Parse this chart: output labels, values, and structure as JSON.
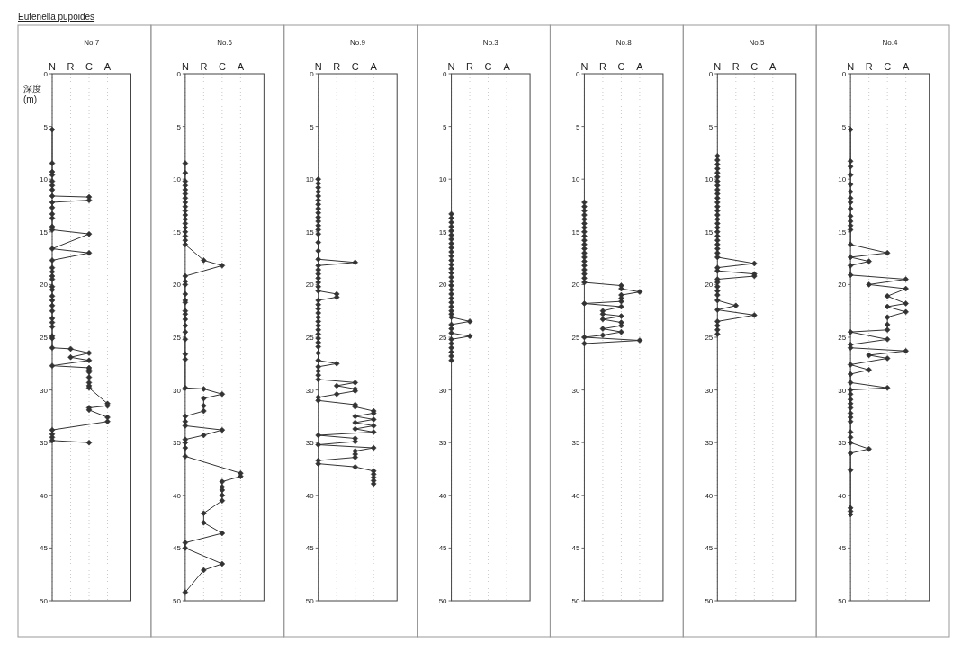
{
  "chart_data": [
    {
      "type": "line",
      "title": "No.7",
      "ylabel": "深度\n(m)",
      "annotations": [
        "Eufenella pupoides"
      ],
      "categories": [
        "N",
        "R",
        "C",
        "A"
      ],
      "ylim": [
        50,
        0
      ],
      "yticks": [
        0,
        5,
        10,
        15,
        20,
        25,
        30,
        35,
        40,
        45,
        50
      ],
      "grid": "x",
      "marker": "diamond",
      "line_style": "solid",
      "series": [
        {
          "color": "#333333",
          "x": [
            "N",
            "N",
            "N",
            "N",
            "N",
            "N",
            "N",
            "N",
            "C",
            "C",
            "N",
            "N",
            "N",
            "N",
            "N",
            "N",
            "C",
            "N",
            "C",
            "N",
            "N",
            "N",
            "N",
            "N",
            "N",
            "N",
            "N",
            "N",
            "N",
            "N",
            "N",
            "N",
            "N",
            "N",
            "N",
            "N",
            "R",
            "C",
            "R",
            "C",
            "N",
            "C",
            "C",
            "C",
            "C",
            "C",
            "C",
            "C",
            "A",
            "A",
            "C",
            "C",
            "A",
            "A",
            "N",
            "N",
            "N",
            "N",
            "C"
          ],
          "values": [
            5.3,
            8.5,
            9.3,
            9.6,
            10.2,
            10.6,
            11.0,
            11.6,
            11.7,
            12.0,
            12.2,
            12.7,
            13.3,
            13.7,
            14.5,
            14.8,
            15.2,
            16.6,
            17.0,
            17.7,
            18.4,
            18.8,
            19.2,
            19.5,
            20.2,
            20.5,
            21.1,
            21.5,
            22.0,
            22.5,
            23.2,
            23.6,
            24.0,
            24.9,
            25.1,
            26.0,
            26.1,
            26.5,
            26.9,
            27.2,
            27.7,
            27.9,
            28.1,
            28.3,
            28.8,
            29.3,
            29.6,
            29.8,
            31.3,
            31.5,
            31.7,
            31.9,
            32.6,
            33.0,
            33.8,
            34.2,
            34.5,
            34.8,
            35.0
          ]
        }
      ]
    },
    {
      "type": "line",
      "title": "No.6",
      "categories": [
        "N",
        "R",
        "C",
        "A"
      ],
      "ylim": [
        50,
        0
      ],
      "yticks": [
        0,
        5,
        10,
        15,
        20,
        25,
        30,
        35,
        40,
        45,
        50
      ],
      "grid": "x",
      "marker": "diamond",
      "line_style": "solid",
      "series": [
        {
          "color": "#333333",
          "x": [
            "N",
            "N",
            "N",
            "N",
            "N",
            "N",
            "N",
            "N",
            "N",
            "N",
            "N",
            "N",
            "N",
            "N",
            "N",
            "N",
            "N",
            "N",
            "R",
            "C",
            "N",
            "N",
            "N",
            "N",
            "N",
            "N",
            "N",
            "N",
            "N",
            "N",
            "N",
            "N",
            "N",
            "N",
            "N",
            "R",
            "C",
            "R",
            "R",
            "R",
            "N",
            "N",
            "N",
            "C",
            "R",
            "N",
            "N",
            "N",
            "N",
            "A",
            "A",
            "C",
            "C",
            "C",
            "C",
            "C",
            "R",
            "R",
            "C",
            "N",
            "N",
            "C",
            "R",
            "N"
          ],
          "values": [
            8.5,
            9.4,
            10.2,
            10.6,
            11.0,
            11.4,
            11.8,
            12.2,
            12.6,
            13.0,
            13.4,
            13.8,
            14.2,
            14.6,
            15.0,
            15.4,
            15.8,
            16.2,
            17.7,
            18.2,
            19.2,
            19.7,
            20.0,
            20.9,
            21.5,
            21.7,
            22.5,
            22.8,
            23.3,
            23.9,
            24.5,
            25.2,
            26.6,
            27.1,
            29.8,
            29.9,
            30.4,
            30.8,
            31.5,
            32.0,
            32.5,
            33.0,
            33.4,
            33.8,
            34.3,
            34.7,
            35.0,
            35.5,
            36.3,
            37.9,
            38.2,
            38.7,
            39.2,
            39.5,
            40.0,
            40.5,
            41.7,
            42.6,
            43.6,
            44.5,
            45.0,
            46.5,
            47.1,
            49.2
          ]
        }
      ]
    },
    {
      "type": "line",
      "title": "No.9",
      "categories": [
        "N",
        "R",
        "C",
        "A"
      ],
      "ylim": [
        50,
        0
      ],
      "yticks": [
        0,
        5,
        10,
        15,
        20,
        25,
        30,
        35,
        40,
        45,
        50
      ],
      "grid": "x",
      "marker": "diamond",
      "line_style": "solid",
      "series": [
        {
          "color": "#333333",
          "x": [
            "N",
            "N",
            "N",
            "N",
            "N",
            "N",
            "N",
            "N",
            "N",
            "N",
            "N",
            "N",
            "N",
            "N",
            "N",
            "N",
            "N",
            "C",
            "N",
            "N",
            "N",
            "N",
            "N",
            "N",
            "N",
            "R",
            "R",
            "N",
            "N",
            "N",
            "N",
            "N",
            "N",
            "N",
            "N",
            "N",
            "N",
            "N",
            "N",
            "N",
            "N",
            "R",
            "N",
            "N",
            "N",
            "N",
            "C",
            "R",
            "C",
            "C",
            "R",
            "N",
            "N",
            "C",
            "C",
            "A",
            "A",
            "C",
            "A",
            "C",
            "A",
            "C",
            "A",
            "N",
            "C",
            "C",
            "N",
            "A",
            "C",
            "C",
            "C",
            "N",
            "N",
            "C",
            "A",
            "A",
            "A",
            "A",
            "A"
          ],
          "values": [
            10.0,
            10.4,
            10.8,
            11.2,
            11.6,
            12.0,
            12.4,
            12.8,
            13.2,
            13.6,
            14.0,
            14.4,
            14.8,
            15.2,
            16.0,
            16.8,
            17.6,
            17.9,
            18.2,
            18.6,
            19.0,
            19.4,
            19.8,
            20.2,
            20.6,
            20.9,
            21.2,
            21.5,
            21.9,
            22.3,
            22.7,
            23.1,
            23.5,
            23.9,
            24.3,
            24.7,
            25.1,
            25.5,
            25.9,
            26.5,
            27.2,
            27.5,
            27.8,
            28.2,
            28.6,
            29.0,
            29.3,
            29.6,
            29.9,
            30.1,
            30.4,
            30.7,
            31.0,
            31.4,
            31.6,
            32.0,
            32.2,
            32.5,
            32.8,
            33.1,
            33.4,
            33.7,
            34.0,
            34.3,
            34.6,
            34.9,
            35.2,
            35.5,
            35.8,
            36.1,
            36.4,
            36.7,
            37.0,
            37.3,
            37.7,
            38.0,
            38.3,
            38.6,
            38.9
          ]
        }
      ]
    },
    {
      "type": "line",
      "title": "No.3",
      "categories": [
        "N",
        "R",
        "C",
        "A"
      ],
      "ylim": [
        50,
        0
      ],
      "yticks": [
        0,
        5,
        10,
        15,
        20,
        25,
        30,
        35,
        40,
        45,
        50
      ],
      "grid": "x",
      "marker": "diamond",
      "line_style": "solid",
      "series": [
        {
          "color": "#333333",
          "x": [
            "N",
            "N",
            "N",
            "N",
            "N",
            "N",
            "N",
            "N",
            "N",
            "N",
            "N",
            "N",
            "N",
            "N",
            "N",
            "N",
            "N",
            "N",
            "N",
            "N",
            "N",
            "N",
            "N",
            "N",
            "N",
            "N",
            "R",
            "N",
            "N",
            "N",
            "R",
            "N",
            "N",
            "N",
            "N",
            "N",
            "N"
          ],
          "values": [
            13.3,
            13.7,
            14.1,
            14.5,
            14.9,
            15.3,
            15.7,
            16.1,
            16.5,
            16.9,
            17.3,
            17.7,
            18.1,
            18.5,
            18.9,
            19.3,
            19.7,
            20.1,
            20.5,
            20.9,
            21.3,
            21.7,
            22.1,
            22.5,
            22.8,
            23.1,
            23.5,
            23.8,
            24.2,
            24.6,
            24.9,
            25.2,
            25.6,
            26.0,
            26.4,
            26.8,
            27.2
          ]
        }
      ]
    },
    {
      "type": "line",
      "title": "No.8",
      "categories": [
        "N",
        "R",
        "C",
        "A"
      ],
      "ylim": [
        50,
        0
      ],
      "yticks": [
        0,
        5,
        10,
        15,
        20,
        25,
        30,
        35,
        40,
        45,
        50
      ],
      "grid": "x",
      "marker": "diamond",
      "line_style": "solid",
      "series": [
        {
          "color": "#333333",
          "x": [
            "N",
            "N",
            "N",
            "N",
            "N",
            "N",
            "N",
            "N",
            "N",
            "N",
            "N",
            "N",
            "N",
            "N",
            "N",
            "N",
            "N",
            "N",
            "N",
            "N",
            "C",
            "C",
            "A",
            "C",
            "C",
            "C",
            "N",
            "C",
            "R",
            "R",
            "C",
            "R",
            "C",
            "C",
            "R",
            "C",
            "R",
            "N",
            "A",
            "N"
          ],
          "values": [
            12.2,
            12.6,
            13.0,
            13.4,
            13.8,
            14.2,
            14.6,
            15.0,
            15.4,
            15.8,
            16.2,
            16.6,
            17.0,
            17.4,
            17.8,
            18.2,
            18.6,
            19.0,
            19.4,
            19.8,
            20.1,
            20.4,
            20.7,
            21.0,
            21.3,
            21.6,
            21.8,
            22.1,
            22.5,
            22.8,
            23.0,
            23.3,
            23.6,
            23.9,
            24.2,
            24.5,
            24.8,
            25.0,
            25.3,
            25.6
          ]
        }
      ]
    },
    {
      "type": "line",
      "title": "No.5",
      "categories": [
        "N",
        "R",
        "C",
        "A"
      ],
      "ylim": [
        50,
        0
      ],
      "yticks": [
        0,
        5,
        10,
        15,
        20,
        25,
        30,
        35,
        40,
        45,
        50
      ],
      "grid": "x",
      "marker": "diamond",
      "line_style": "solid",
      "series": [
        {
          "color": "#333333",
          "x": [
            "N",
            "N",
            "N",
            "N",
            "N",
            "N",
            "N",
            "N",
            "N",
            "N",
            "N",
            "N",
            "N",
            "N",
            "N",
            "N",
            "N",
            "N",
            "N",
            "N",
            "N",
            "N",
            "N",
            "N",
            "N",
            "C",
            "N",
            "N",
            "C",
            "C",
            "N",
            "N",
            "N",
            "N",
            "N",
            "N",
            "R",
            "N",
            "C",
            "N",
            "N",
            "N",
            "N"
          ],
          "values": [
            7.8,
            8.2,
            8.6,
            9.0,
            9.4,
            9.8,
            10.2,
            10.6,
            11.0,
            11.4,
            11.8,
            12.2,
            12.6,
            13.0,
            13.4,
            13.8,
            14.2,
            14.6,
            15.0,
            15.4,
            15.8,
            16.2,
            16.6,
            17.0,
            17.4,
            18.0,
            18.4,
            18.7,
            19.0,
            19.2,
            19.5,
            19.8,
            20.2,
            20.6,
            21.0,
            21.5,
            22.0,
            22.4,
            22.9,
            23.5,
            23.9,
            24.3,
            24.7
          ]
        }
      ]
    },
    {
      "type": "line",
      "title": "No.4",
      "categories": [
        "N",
        "R",
        "C",
        "A"
      ],
      "ylim": [
        50,
        0
      ],
      "yticks": [
        0,
        5,
        10,
        15,
        20,
        25,
        30,
        35,
        40,
        45,
        50
      ],
      "grid": "x",
      "marker": "diamond",
      "line_style": "solid",
      "series": [
        {
          "color": "#333333",
          "x": [
            "N",
            "N",
            "N",
            "N",
            "N",
            "N",
            "N",
            "N",
            "N",
            "N",
            "N",
            "N",
            "N",
            "N",
            "C",
            "N",
            "R",
            "N",
            "N",
            "A",
            "R",
            "A",
            "C",
            "A",
            "C",
            "A",
            "C",
            "C",
            "C",
            "N",
            "C",
            "N",
            "N",
            "A",
            "R",
            "C",
            "N",
            "R",
            "N",
            "N",
            "C",
            "N",
            "N",
            "N",
            "N",
            "N",
            "N",
            "N",
            "N",
            "N",
            "N",
            "N",
            "R",
            "N",
            "N",
            "N",
            "N",
            "N"
          ],
          "values": [
            5.3,
            8.3,
            8.8,
            9.6,
            10.5,
            11.2,
            11.8,
            12.2,
            12.8,
            13.5,
            14.0,
            14.4,
            14.8,
            16.2,
            17.0,
            17.4,
            17.8,
            18.2,
            19.1,
            19.5,
            20.0,
            20.4,
            21.1,
            21.8,
            22.1,
            22.6,
            23.1,
            23.8,
            24.3,
            24.5,
            25.2,
            25.7,
            26.0,
            26.3,
            26.7,
            27.0,
            27.6,
            28.1,
            28.5,
            29.3,
            29.8,
            30.0,
            30.4,
            30.9,
            31.3,
            31.7,
            32.2,
            32.6,
            33.0,
            34.0,
            34.5,
            35.0,
            35.6,
            36.0,
            37.6,
            41.2,
            41.5,
            41.8
          ]
        }
      ]
    }
  ]
}
